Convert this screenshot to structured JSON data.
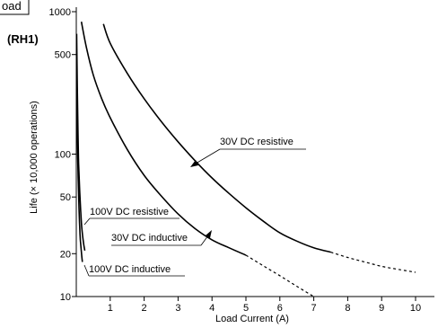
{
  "header": {
    "box_label": "oad",
    "relay_label": "(RH1)"
  },
  "chart_data": {
    "type": "line",
    "xlabel": "Load Current (A)",
    "ylabel": "Life (× 10,000 operations)",
    "y_scale": "log",
    "xlim": [
      0,
      10.5
    ],
    "ylim": [
      10,
      1000
    ],
    "x_ticks": [
      "1",
      "2",
      "3",
      "4",
      "5",
      "6",
      "7",
      "8",
      "9",
      "10"
    ],
    "y_ticks": [
      "1000",
      "500",
      "100",
      "50",
      "20",
      "10"
    ],
    "grid": false,
    "series": [
      {
        "name": "30V DC resistive",
        "x": [
          0.8,
          1,
          1.5,
          2,
          2.5,
          3,
          3.5,
          4,
          4.5,
          5,
          5.5,
          6,
          6.5,
          7,
          7.5
        ],
        "y": [
          820,
          600,
          370,
          245,
          170,
          122,
          90,
          68,
          53,
          42,
          34,
          28,
          24.5,
          22,
          20.5
        ],
        "extension_x": [
          7.5,
          8,
          8.5,
          9,
          9.5,
          10
        ],
        "extension_y": [
          20.5,
          18.8,
          17.5,
          16.3,
          15.5,
          14.8
        ]
      },
      {
        "name": "30V DC inductive",
        "x": [
          0.15,
          0.3,
          0.5,
          0.75,
          1,
          1.5,
          2,
          2.5,
          3,
          3.5,
          4,
          4.5,
          5
        ],
        "y": [
          850,
          560,
          360,
          245,
          180,
          108,
          71,
          51,
          38,
          30,
          25,
          22,
          19.5
        ],
        "extension_x": [
          5,
          5.5,
          6,
          6.5,
          7
        ],
        "extension_y": [
          19.5,
          16.5,
          14,
          11.8,
          10
        ]
      },
      {
        "name": "100V DC resistive",
        "x": [
          0.01,
          0.03,
          0.05,
          0.07,
          0.1,
          0.13,
          0.16,
          0.2,
          0.25
        ],
        "y": [
          700,
          300,
          140,
          85,
          55,
          40,
          31,
          25,
          21
        ]
      },
      {
        "name": "100V DC inductive",
        "x": [
          0.01,
          0.02,
          0.04,
          0.06,
          0.08,
          0.1,
          0.12,
          0.15,
          0.18
        ],
        "y": [
          500,
          220,
          100,
          62,
          42,
          31,
          25,
          20.5,
          17.5
        ]
      }
    ]
  }
}
